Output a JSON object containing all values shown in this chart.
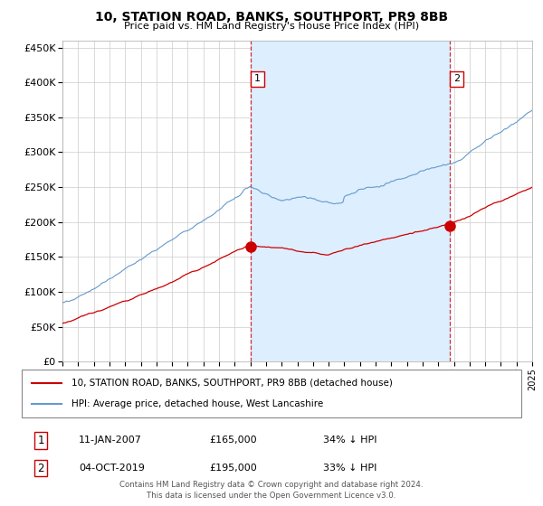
{
  "title": "10, STATION ROAD, BANKS, SOUTHPORT, PR9 8BB",
  "subtitle": "Price paid vs. HM Land Registry's House Price Index (HPI)",
  "legend_line1": "10, STATION ROAD, BANKS, SOUTHPORT, PR9 8BB (detached house)",
  "legend_line2": "HPI: Average price, detached house, West Lancashire",
  "transaction1_date": "11-JAN-2007",
  "transaction1_price": "£165,000",
  "transaction1_hpi": "34% ↓ HPI",
  "transaction1_year": 2007.04,
  "transaction1_value": 165000,
  "transaction2_date": "04-OCT-2019",
  "transaction2_price": "£195,000",
  "transaction2_hpi": "33% ↓ HPI",
  "transaction2_year": 2019.75,
  "transaction2_value": 195000,
  "red_color": "#cc0000",
  "blue_color": "#6699cc",
  "shade_color": "#ddeeff",
  "footer": "Contains HM Land Registry data © Crown copyright and database right 2024.\nThis data is licensed under the Open Government Licence v3.0.",
  "ylim_min": 0,
  "ylim_max": 460000,
  "yticks": [
    0,
    50000,
    100000,
    150000,
    200000,
    250000,
    300000,
    350000,
    400000,
    450000
  ],
  "start_year": 1995,
  "end_year": 2025
}
